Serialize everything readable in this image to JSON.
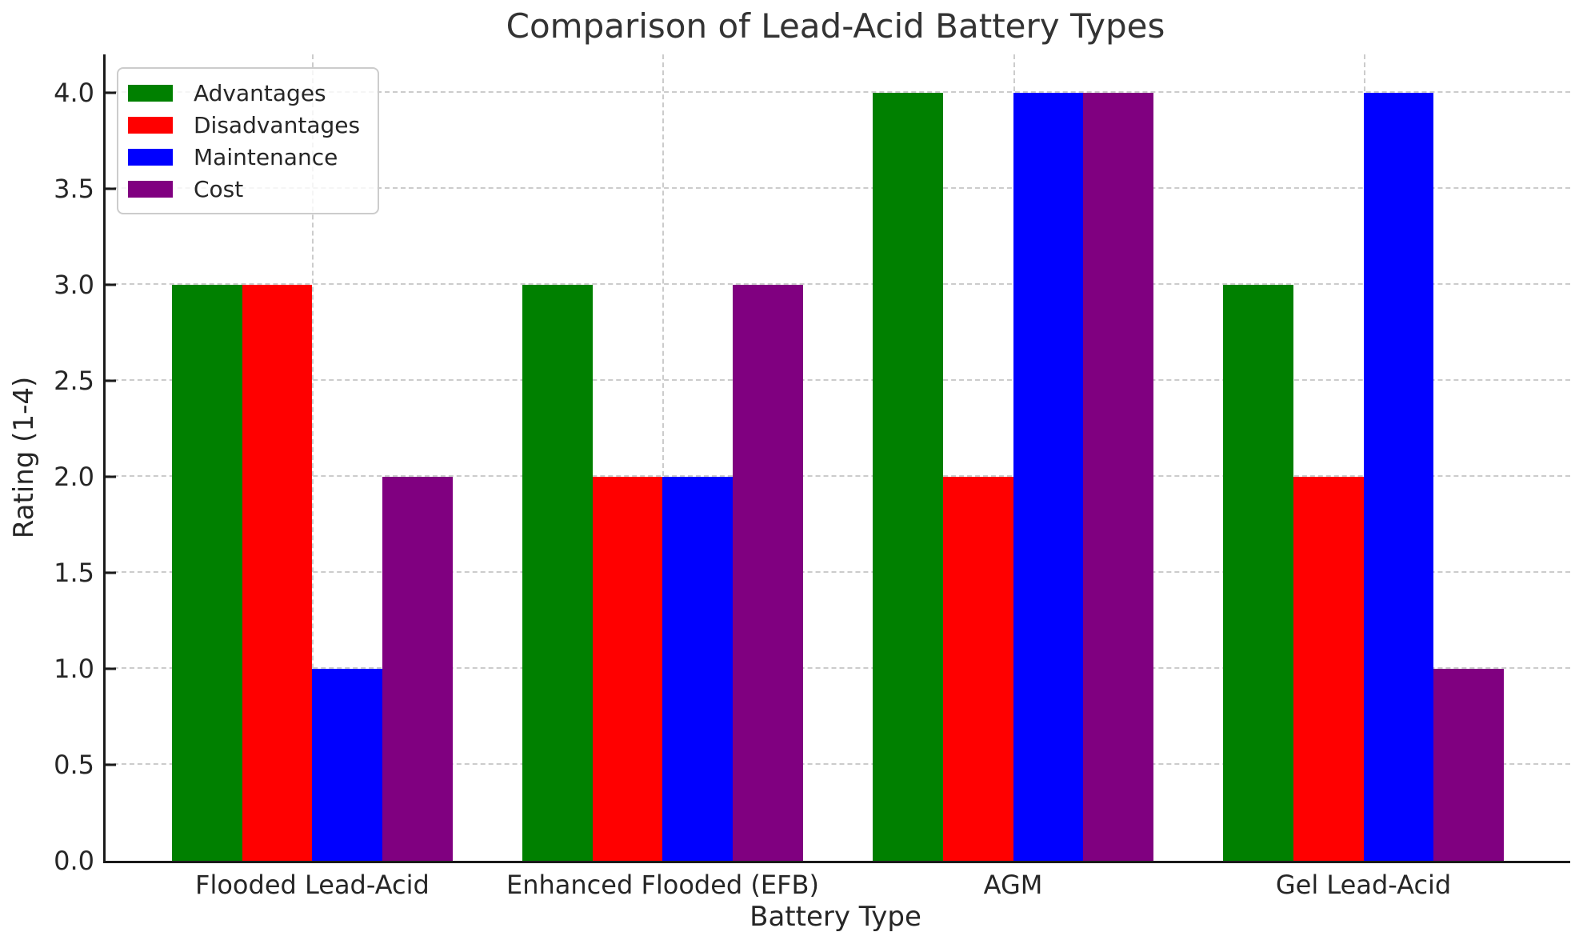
{
  "chart_data": {
    "type": "bar",
    "title": "Comparison of Lead-Acid Battery Types",
    "xlabel": "Battery Type",
    "ylabel": "Rating (1-4)",
    "categories": [
      "Flooded Lead-Acid",
      "Enhanced Flooded (EFB)",
      "AGM",
      "Gel Lead-Acid"
    ],
    "series": [
      {
        "name": "Advantages",
        "color": "#008000",
        "values": [
          3,
          3,
          4,
          3
        ]
      },
      {
        "name": "Disadvantages",
        "color": "#ff0000",
        "values": [
          3,
          2,
          2,
          2
        ]
      },
      {
        "name": "Maintenance",
        "color": "#0000ff",
        "values": [
          1,
          2,
          4,
          4
        ]
      },
      {
        "name": "Cost",
        "color": "#800080",
        "values": [
          2,
          3,
          4,
          1
        ]
      }
    ],
    "ylim": [
      0,
      4.2
    ],
    "xlim": [
      -0.59,
      3.59
    ],
    "yticks": [
      0,
      0.5,
      1,
      1.5,
      2,
      2.5,
      3,
      3.5,
      4
    ],
    "ytick_labels": [
      "0.0",
      "0.5",
      "1.0",
      "1.5",
      "2.0",
      "2.5",
      "3.0",
      "3.5",
      "4.0"
    ],
    "bar_width": 0.2,
    "group_span": 0.8,
    "grid": true,
    "legend_position": "upper left"
  },
  "colors": {
    "background": "#ffffff",
    "text": "#262626",
    "spine": "#1a1a1a",
    "grid": "#cccccc",
    "legend_border": "#cccccc"
  }
}
